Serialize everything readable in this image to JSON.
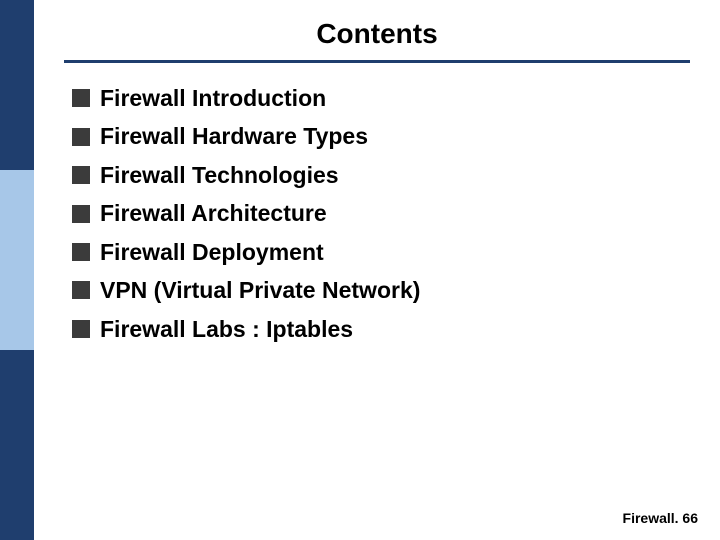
{
  "title": "Contents",
  "bullet_color": "#3b3b3b",
  "rule_color": "#1f3e6e",
  "sidebar_colors": {
    "top": "#1f3e6e",
    "mid": "#a7c7e8",
    "bot": "#1f3e6e"
  },
  "list_fontsize": 23,
  "title_fontsize": 28,
  "items": {
    "i0": "Firewall Introduction",
    "i1": "Firewall Hardware Types",
    "i2": "Firewall Technologies",
    "i3": "Firewall Architecture",
    "i4": "Firewall Deployment",
    "i5": "VPN (Virtual Private Network)",
    "i6": "Firewall Labs : Iptables"
  },
  "footer": "Firewall. 66"
}
